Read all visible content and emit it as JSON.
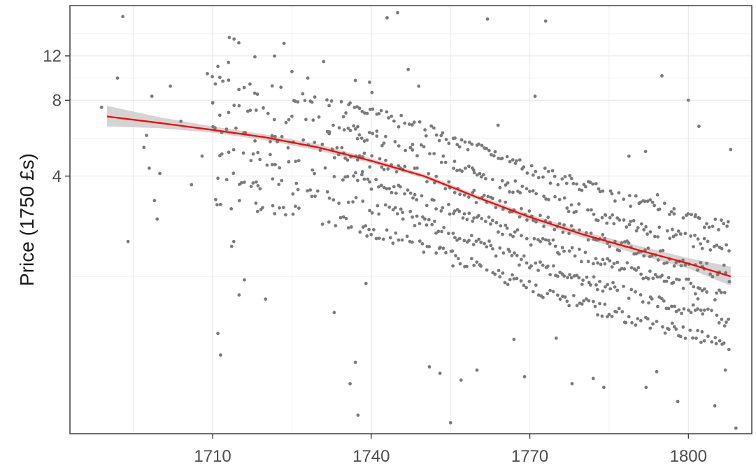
{
  "chart_data": {
    "type": "scatter",
    "title": "",
    "xlabel": "",
    "ylabel": "Price (1750 £s)",
    "y_scale": "log",
    "xlim": [
      1683,
      1812
    ],
    "ylim": [
      0.38,
      19
    ],
    "x_ticks": [
      1710,
      1740,
      1770,
      1800
    ],
    "x_tick_labels": [
      "1710",
      "1740",
      "1770",
      "1800"
    ],
    "y_ticks": [
      4,
      8,
      12
    ],
    "y_tick_labels": [
      "4",
      "8",
      "12"
    ],
    "grid": true,
    "legend": "none",
    "colors": {
      "points": "#7a7a7a",
      "trend": "#ff0000",
      "band": "#cccccc",
      "grid": "#ebebeb",
      "panel_border": "#333333"
    },
    "points_sample": [
      {
        "x": 1689,
        "y": 7.5
      },
      {
        "x": 1692,
        "y": 9.8
      },
      {
        "x": 1693,
        "y": 17.2
      },
      {
        "x": 1694,
        "y": 2.2
      },
      {
        "x": 1697,
        "y": 5.2
      },
      {
        "x": 1697.5,
        "y": 5.8
      },
      {
        "x": 1698,
        "y": 4.3
      },
      {
        "x": 1698.5,
        "y": 8.3
      },
      {
        "x": 1699,
        "y": 3.2
      },
      {
        "x": 1699.5,
        "y": 2.7
      },
      {
        "x": 1700,
        "y": 4.1
      },
      {
        "x": 1702,
        "y": 9.1
      },
      {
        "x": 1704,
        "y": 6.6
      },
      {
        "x": 1706,
        "y": 3.7
      },
      {
        "x": 1708,
        "y": 4.8
      },
      {
        "x": 1709,
        "y": 10.2
      },
      {
        "x": 1710,
        "y": 7.8
      },
      {
        "x": 1711,
        "y": 10.9
      },
      {
        "x": 1711,
        "y": 0.95
      },
      {
        "x": 1711.5,
        "y": 0.78
      },
      {
        "x": 1713,
        "y": 11.3
      },
      {
        "x": 1714,
        "y": 2.2
      },
      {
        "x": 1715,
        "y": 1.35
      },
      {
        "x": 1716,
        "y": 1.55
      },
      {
        "x": 1718,
        "y": 11.9
      },
      {
        "x": 1720,
        "y": 1.3
      },
      {
        "x": 1725,
        "y": 10.4
      },
      {
        "x": 1728,
        "y": 9.8
      },
      {
        "x": 1731,
        "y": 11.4
      },
      {
        "x": 1733,
        "y": 1.15
      },
      {
        "x": 1736,
        "y": 0.6
      },
      {
        "x": 1737,
        "y": 0.73
      },
      {
        "x": 1737.5,
        "y": 0.45
      },
      {
        "x": 1739,
        "y": 1.5
      },
      {
        "x": 1743,
        "y": 17
      },
      {
        "x": 1745,
        "y": 17.8
      },
      {
        "x": 1746,
        "y": 2.7
      },
      {
        "x": 1747,
        "y": 10.6
      },
      {
        "x": 1749,
        "y": 9.1
      },
      {
        "x": 1751,
        "y": 0.7
      },
      {
        "x": 1753,
        "y": 0.66
      },
      {
        "x": 1755,
        "y": 0.42
      },
      {
        "x": 1757,
        "y": 0.62
      },
      {
        "x": 1760,
        "y": 0.68
      },
      {
        "x": 1762,
        "y": 16.8
      },
      {
        "x": 1767,
        "y": 0.9
      },
      {
        "x": 1769,
        "y": 0.64
      },
      {
        "x": 1771,
        "y": 8.3
      },
      {
        "x": 1773,
        "y": 16.5
      },
      {
        "x": 1775,
        "y": 0.91
      },
      {
        "x": 1778,
        "y": 0.6
      },
      {
        "x": 1782,
        "y": 0.63
      },
      {
        "x": 1784,
        "y": 0.58
      },
      {
        "x": 1792,
        "y": 0.58
      },
      {
        "x": 1794,
        "y": 0.67
      },
      {
        "x": 1795,
        "y": 10
      },
      {
        "x": 1798,
        "y": 0.51
      },
      {
        "x": 1800,
        "y": 8
      },
      {
        "x": 1802,
        "y": 6.3
      },
      {
        "x": 1805,
        "y": 0.49
      },
      {
        "x": 1807,
        "y": 0.68
      },
      {
        "x": 1808,
        "y": 5.1
      },
      {
        "x": 1809,
        "y": 0.4
      }
    ],
    "trend": {
      "method": "smooth",
      "x": [
        1690,
        1700,
        1710,
        1720,
        1730,
        1740,
        1750,
        1760,
        1770,
        1780,
        1790,
        1800,
        1808
      ],
      "y": [
        6.9,
        6.5,
        6.1,
        5.7,
        5.2,
        4.6,
        4.0,
        3.3,
        2.75,
        2.35,
        2.05,
        1.8,
        1.6
      ],
      "band_low": [
        6.3,
        6.2,
        5.95,
        5.55,
        5.05,
        4.5,
        3.92,
        3.23,
        2.68,
        2.28,
        1.97,
        1.72,
        1.47
      ],
      "band_high": [
        7.6,
        6.85,
        6.3,
        5.85,
        5.35,
        4.7,
        4.08,
        3.37,
        2.82,
        2.42,
        2.13,
        1.89,
        1.75
      ]
    }
  }
}
